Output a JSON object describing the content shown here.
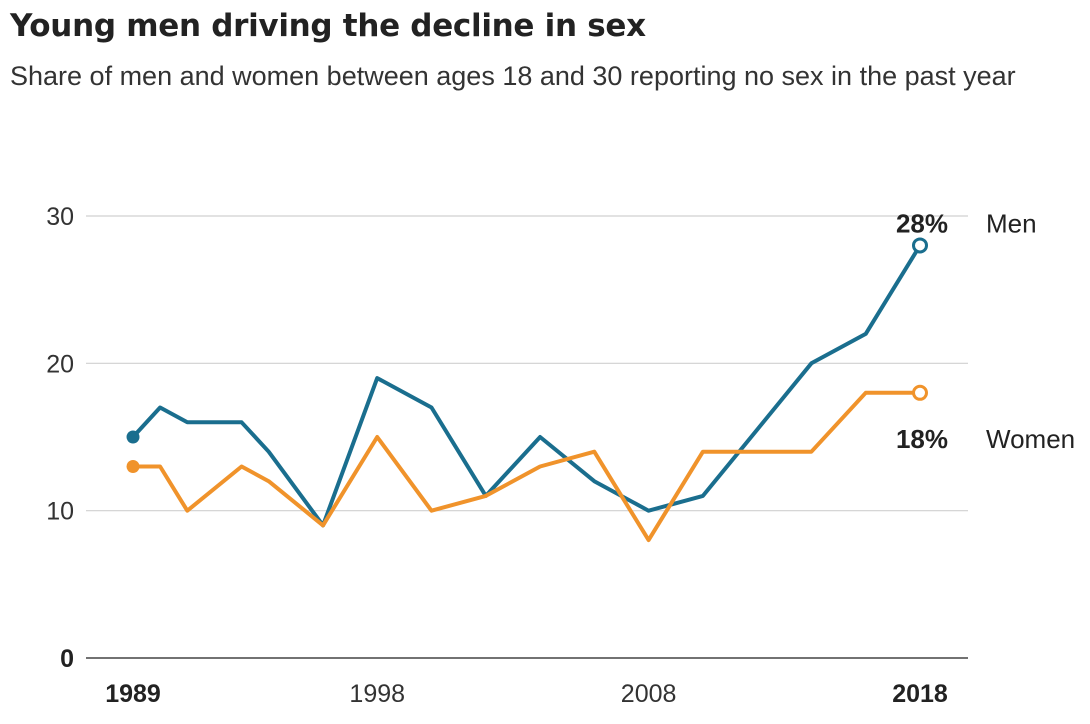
{
  "title": "Young men driving the decline in sex",
  "subtitle": "Share of men and women between ages 18 and 30 reporting no sex in the past year",
  "chart_data": {
    "type": "line",
    "title": "Young men driving the decline in sex",
    "subtitle": "Share of men and women between ages 18 and 30 reporting no sex in the past year",
    "xlabel": "",
    "ylabel": "",
    "x": [
      1989,
      1990,
      1991,
      1993,
      1994,
      1996,
      1998,
      2000,
      2002,
      2004,
      2006,
      2008,
      2010,
      2012,
      2014,
      2016,
      2018
    ],
    "x_ticks": [
      {
        "label": "1989",
        "value": 1989,
        "bold": true
      },
      {
        "label": "1998",
        "value": 1998,
        "bold": false
      },
      {
        "label": "2008",
        "value": 2008,
        "bold": false
      },
      {
        "label": "2018",
        "value": 2018,
        "bold": true
      }
    ],
    "y_ticks": [
      {
        "label": "0",
        "value": 0
      },
      {
        "label": "10",
        "value": 10
      },
      {
        "label": "20",
        "value": 20
      },
      {
        "label": "30",
        "value": 30
      }
    ],
    "xlim": [
      1989,
      2018
    ],
    "ylim": [
      0,
      30
    ],
    "grid": true,
    "series": [
      {
        "name": "Men",
        "color": "#1a6e8e",
        "end_label": "28%",
        "values": [
          15,
          17,
          16,
          16,
          14,
          9,
          19,
          17,
          11,
          15,
          12,
          10,
          11,
          15.5,
          20,
          22,
          28
        ]
      },
      {
        "name": "Women",
        "color": "#f0932b",
        "end_label": "18%",
        "values": [
          13,
          13,
          10,
          13,
          12,
          9,
          15,
          10,
          11,
          13,
          14,
          8,
          14,
          14,
          14,
          18,
          18
        ]
      }
    ]
  }
}
